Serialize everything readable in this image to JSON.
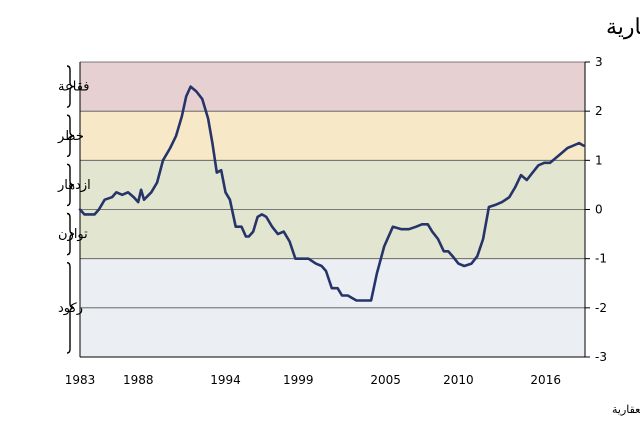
{
  "chart_data": {
    "type": "line",
    "title": "خطر حدوث فقاعة عقارية",
    "source": "المصدر: مؤشر مصرف يو بي إس بشأن الفقاعة العقارية",
    "xlabel": "",
    "ylabel": "",
    "xlim": [
      1984,
      2018.7
    ],
    "ylim": [
      -3,
      3
    ],
    "x_ticks": [
      {
        "value": 1983,
        "label": "1983"
      },
      {
        "value": 1988,
        "label": "1988"
      },
      {
        "value": 1994,
        "label": "1994"
      },
      {
        "value": 1999,
        "label": "1999"
      },
      {
        "value": 2005,
        "label": "2005"
      },
      {
        "value": 2010,
        "label": "2010"
      },
      {
        "value": 2016,
        "label": "2016"
      }
    ],
    "y_ticks": [
      "3",
      "2",
      "1",
      "0",
      "-1",
      "-2",
      "-3"
    ],
    "y_tick_values": [
      3,
      2,
      1,
      0,
      -1,
      -2,
      -3
    ],
    "zones": [
      {
        "label": "فقاعة",
        "from": 2,
        "to": 3,
        "color": "#e6d0d2"
      },
      {
        "label": "خطر",
        "from": 1,
        "to": 2,
        "color": "#f7e9c8"
      },
      {
        "label": "ازدهار",
        "from": 0,
        "to": 1,
        "color": "#e2e5cf"
      },
      {
        "label": "توازن",
        "from": -1,
        "to": 0,
        "color": "#e2e5cf"
      },
      {
        "label": "ركود",
        "from": -3,
        "to": -1,
        "color": "#ebeff3"
      }
    ],
    "grid": true,
    "line_color": "#26346a",
    "series": [
      {
        "x": [
          1984.0,
          1984.3,
          1985.0,
          1985.3,
          1985.7,
          1986.2,
          1986.5,
          1986.9,
          1987.3,
          1987.7,
          1988.0,
          1988.2,
          1988.4,
          1988.9,
          1989.3,
          1989.7,
          1990.2,
          1990.6,
          1991.0,
          1991.3,
          1991.6,
          1992.0,
          1992.4,
          1992.8,
          1993.1,
          1993.4,
          1993.7,
          1994.0,
          1994.3,
          1994.7,
          1995.1,
          1995.4,
          1995.6,
          1995.9,
          1996.2,
          1996.5,
          1996.8,
          1997.2,
          1997.6,
          1998.0,
          1998.4,
          1998.8,
          1999.3,
          1999.7,
          2000.2,
          2000.6,
          2000.9,
          2001.3,
          2001.7,
          2002.0,
          2002.4,
          2002.7,
          2003.0,
          2003.4,
          2004.0,
          2004.4,
          2004.9,
          2005.5,
          2006.1,
          2006.6,
          2007.1,
          2007.5,
          2007.9,
          2008.2,
          2008.6,
          2009.0,
          2009.3,
          2009.6,
          2010.0,
          2010.4,
          2010.9,
          2011.3,
          2011.7,
          2012.1,
          2012.6,
          2013.0,
          2013.5,
          2013.9,
          2014.3,
          2014.7,
          2015.1,
          2015.5,
          2015.9,
          2016.3,
          2016.7,
          2017.1,
          2017.5,
          2017.9,
          2018.3,
          2018.6
        ],
        "y": [
          0.0,
          -0.1,
          -0.1,
          0.0,
          0.2,
          0.25,
          0.35,
          0.3,
          0.35,
          0.25,
          0.15,
          0.4,
          0.2,
          0.35,
          0.55,
          1.0,
          1.25,
          1.5,
          1.9,
          2.3,
          2.5,
          2.4,
          2.25,
          1.85,
          1.35,
          0.75,
          0.8,
          0.35,
          0.2,
          -0.35,
          -0.35,
          -0.55,
          -0.55,
          -0.45,
          -0.15,
          -0.1,
          -0.15,
          -0.35,
          -0.5,
          -0.45,
          -0.65,
          -1.0,
          -1.0,
          -1.0,
          -1.1,
          -1.15,
          -1.25,
          -1.6,
          -1.6,
          -1.75,
          -1.75,
          -1.8,
          -1.85,
          -1.85,
          -1.85,
          -1.3,
          -0.75,
          -0.35,
          -0.4,
          -0.4,
          -0.35,
          -0.3,
          -0.3,
          -0.45,
          -0.6,
          -0.85,
          -0.85,
          -0.95,
          -1.1,
          -1.15,
          -1.1,
          -0.95,
          -0.6,
          0.05,
          0.1,
          0.15,
          0.25,
          0.45,
          0.7,
          0.6,
          0.75,
          0.9,
          0.95,
          0.95,
          1.05,
          1.15,
          1.25,
          1.3,
          1.35,
          1.3
        ]
      }
    ]
  }
}
